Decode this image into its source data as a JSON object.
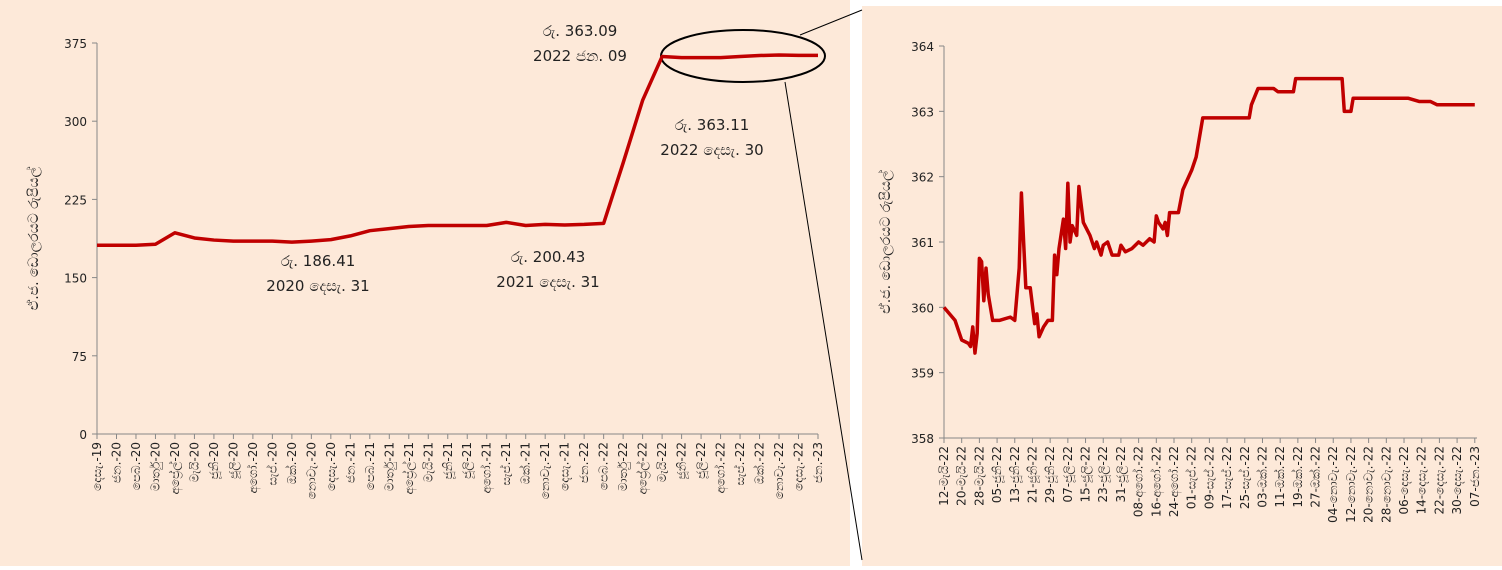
{
  "chart_data": [
    {
      "type": "line",
      "y_label": "ඒ.ජ. ඩොලරයට රුපියල්",
      "categories": [
        "දෙසැ.-19",
        "ජන.-20",
        "පෙබ.-20",
        "මාර්තු-20",
        "අප්‍රේල්-20",
        "මැයි-20",
        "ජූනි-20",
        "ජූලි-20",
        "අගෝ.-20",
        "සැප්.-20",
        "ඔක්.-20",
        "නොවැ.-20",
        "දෙසැ.-20",
        "ජන.-21",
        "පෙබ.-21",
        "මාර්තු-21",
        "අප්‍රේල්-21",
        "මැයි-21",
        "ජූනි-21",
        "ජූලි-21",
        "අගෝ.-21",
        "සැප්.-21",
        "ඔක්.-21",
        "නොවැ.-21",
        "දෙසැ.-21",
        "ජන.-22",
        "පෙබ.-22",
        "මාර්තු-22",
        "අප්‍රේල්-22",
        "මැයි-22",
        "ජූනි-22",
        "ජූලි-22",
        "අගෝ.-22",
        "සැප්.-22",
        "ඔක්.-22",
        "නොවැ.-22",
        "දෙසැ.-22",
        "ජන.-23"
      ],
      "series": [
        {
          "color": "#c00000",
          "values": [
            181,
            181,
            181,
            182,
            193,
            188,
            186,
            185,
            185,
            185,
            184,
            185,
            186.41,
            190,
            195,
            197,
            199,
            200,
            200,
            200,
            200,
            203,
            200,
            201,
            200.43,
            201,
            202,
            260,
            320,
            362,
            361,
            361,
            361,
            362,
            363,
            363.5,
            363.11,
            363.09
          ]
        }
      ],
      "ylim": [
        0,
        375
      ],
      "yticks": [
        0,
        75,
        150,
        225,
        300,
        375
      ],
      "annotations": [
        [
          "රු. 363.09",
          "2022 ජන. 09"
        ],
        [
          "රු. 363.11",
          "2022 දෙසැ. 30"
        ],
        [
          "රු. 186.41",
          "2020 දෙසැ. 31"
        ],
        [
          "රු. 200.43",
          "2021 දෙසැ. 31"
        ]
      ]
    },
    {
      "type": "line",
      "y_label": "ඒ.ජ. ඩොලරයට රුපියල්",
      "series": [
        {
          "color": "#c00000",
          "x": [
            0,
            5,
            8,
            11,
            12,
            13,
            14,
            15,
            16,
            17,
            18,
            19,
            20,
            22,
            25,
            30,
            32,
            34,
            35,
            36,
            37,
            39,
            41,
            42,
            43,
            45,
            47,
            49,
            50,
            51,
            52,
            54,
            55,
            56,
            57,
            58,
            60,
            61,
            63,
            66,
            68,
            69,
            71,
            72,
            74,
            76,
            79,
            80,
            82,
            85,
            88,
            90,
            93,
            95,
            96,
            97,
            99,
            100,
            101,
            102,
            106,
            108,
            112,
            114,
            115,
            117,
            138,
            139,
            142,
            149,
            151,
            158,
            159,
            180,
            181,
            184,
            185,
            197,
            210,
            215,
            220,
            223,
            229,
            240
          ],
          "values": [
            360.0,
            359.8,
            359.5,
            359.45,
            359.4,
            359.7,
            359.3,
            359.6,
            360.75,
            360.7,
            360.1,
            360.6,
            360.2,
            359.8,
            359.8,
            359.85,
            359.8,
            360.6,
            361.75,
            361.0,
            360.3,
            360.3,
            359.75,
            359.9,
            359.55,
            359.7,
            359.8,
            359.8,
            360.8,
            360.5,
            360.9,
            361.35,
            360.9,
            361.9,
            361.0,
            361.25,
            361.1,
            361.85,
            361.3,
            361.1,
            360.9,
            361.0,
            360.8,
            360.95,
            361.0,
            360.8,
            360.8,
            360.95,
            360.85,
            360.9,
            361.0,
            360.95,
            361.05,
            361.0,
            361.4,
            361.3,
            361.2,
            361.3,
            361.1,
            361.45,
            361.45,
            361.8,
            362.1,
            362.3,
            362.5,
            362.9,
            362.9,
            363.1,
            363.35,
            363.35,
            363.3,
            363.3,
            363.5,
            363.5,
            363.0,
            363.0,
            363.2,
            363.2,
            363.2,
            363.15,
            363.15,
            363.1,
            363.1,
            363.1
          ]
        }
      ],
      "xlim": [
        0,
        241
      ],
      "xticks": [
        {
          "value": 0,
          "label": "12-මැයි-22"
        },
        {
          "value": 8,
          "label": "20-මැයි-22"
        },
        {
          "value": 16,
          "label": "28-මැයි-22"
        },
        {
          "value": 24,
          "label": "05-ජූනි-22"
        },
        {
          "value": 32,
          "label": "13-ජූනි-22"
        },
        {
          "value": 40,
          "label": "21-ජූනි-22"
        },
        {
          "value": 48,
          "label": "29-ජූනි-22"
        },
        {
          "value": 56,
          "label": "07-ජූලි-22"
        },
        {
          "value": 64,
          "label": "15-ජූලි-22"
        },
        {
          "value": 72,
          "label": "23-ජූලි-22"
        },
        {
          "value": 80,
          "label": "31-ජූලි-22"
        },
        {
          "value": 88,
          "label": "08-අගෝ.-22"
        },
        {
          "value": 96,
          "label": "16-අගෝ.-22"
        },
        {
          "value": 104,
          "label": "24-අගෝ.-22"
        },
        {
          "value": 112,
          "label": "01-සැප්.-22"
        },
        {
          "value": 120,
          "label": "09-සැප්.-22"
        },
        {
          "value": 128,
          "label": "17-සැප්.-22"
        },
        {
          "value": 136,
          "label": "25-සැප්.-22"
        },
        {
          "value": 144,
          "label": "03-ඔක්.-22"
        },
        {
          "value": 152,
          "label": "11-ඔක්.-22"
        },
        {
          "value": 160,
          "label": "19-ඔක්.-22"
        },
        {
          "value": 168,
          "label": "27-ඔක්.-22"
        },
        {
          "value": 176,
          "label": "04-නොවැ.-22"
        },
        {
          "value": 184,
          "label": "12-නොවැ.-22"
        },
        {
          "value": 192,
          "label": "20-නොවැ.-22"
        },
        {
          "value": 200,
          "label": "28-නොවැ.-22"
        },
        {
          "value": 208,
          "label": "06-දෙසැ.-22"
        },
        {
          "value": 216,
          "label": "14-දෙසැ.-22"
        },
        {
          "value": 224,
          "label": "22-දෙසැ.-22"
        },
        {
          "value": 232,
          "label": "30-දෙසැ.-22"
        },
        {
          "value": 240,
          "label": "07-ජන.-23"
        }
      ],
      "ylim": [
        358,
        364
      ],
      "yticks": [
        358,
        359,
        360,
        361,
        362,
        363,
        364
      ]
    }
  ]
}
